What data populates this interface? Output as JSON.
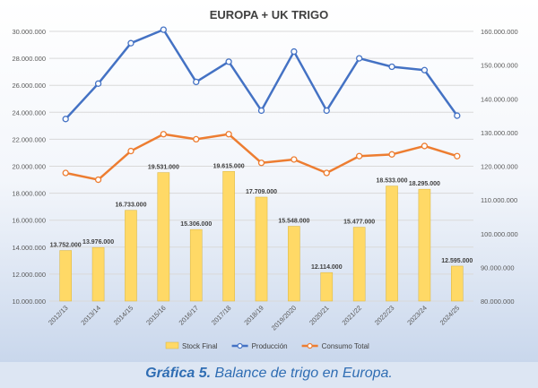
{
  "chart_data": {
    "type": "bar",
    "title": "EUROPA + UK TRIGO",
    "categories": [
      "2012/13",
      "2013/14",
      "2014/15",
      "2015/16",
      "2016/17",
      "2017/18",
      "2018/19",
      "2019/2020",
      "2020/21",
      "2021/22",
      "2022/23",
      "2023/24",
      "2024/25"
    ],
    "y_left": {
      "min": 10000000,
      "max": 30000000,
      "step": 2000000,
      "tick_labels": [
        "10.000.000",
        "12.000.000",
        "14.000.000",
        "16.000.000",
        "18.000.000",
        "20.000.000",
        "22.000.000",
        "24.000.000",
        "26.000.000",
        "28.000.000",
        "30.000.000"
      ]
    },
    "y_right": {
      "min": 80000000,
      "max": 160000000,
      "step": 10000000,
      "tick_labels": [
        "80.000.000",
        "90.000.000",
        "100.000.000",
        "110.000.000",
        "120.000.000",
        "130.000.000",
        "140.000.000",
        "150.000.000",
        "160.000.000"
      ]
    },
    "series": [
      {
        "name": "Stock Final",
        "type": "bar",
        "axis": "left",
        "color": "#ffd966",
        "values": [
          13752000,
          13976000,
          16733000,
          19531000,
          15306000,
          19615000,
          17709000,
          15548000,
          12114000,
          15477000,
          18533000,
          18295000,
          12595000
        ],
        "labels": [
          "13.752.000",
          "13.976.000",
          "16.733.000",
          "19.531.000",
          "15.306.000",
          "19.615.000",
          "17.709.000",
          "15.548.000",
          "12.114.000",
          "15.477.000",
          "18.533.000",
          "18.295.000",
          "12.595.000"
        ]
      },
      {
        "name": "Producción",
        "type": "line",
        "axis": "right",
        "color": "#4472c4",
        "values": [
          134000000,
          144500000,
          156500000,
          160500000,
          145000000,
          151000000,
          136500000,
          154000000,
          136500000,
          152000000,
          149500000,
          148500000,
          135000000
        ]
      },
      {
        "name": "Consumo Total",
        "type": "line",
        "axis": "right",
        "color": "#ed7d31",
        "values": [
          118000000,
          116000000,
          124500000,
          129500000,
          128000000,
          129500000,
          121000000,
          122000000,
          118000000,
          123000000,
          123500000,
          126000000,
          123000000
        ]
      }
    ],
    "legend_position": "bottom",
    "grid": true
  },
  "caption": {
    "label": "Gráfica 5.",
    "text": "Balance de trigo en Europa."
  }
}
